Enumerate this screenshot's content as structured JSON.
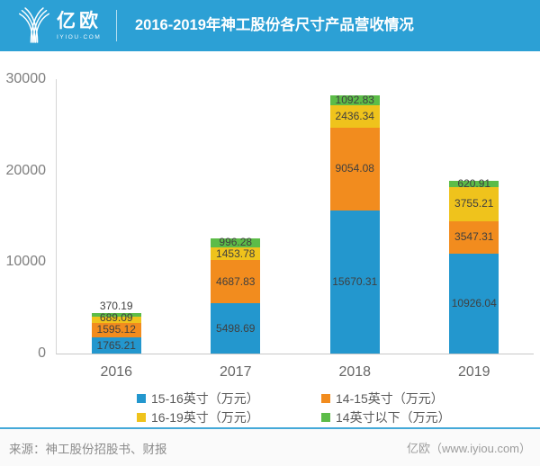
{
  "header": {
    "logo_text": "亿欧",
    "logo_subtext": "IYIOU·COM",
    "title": "2016-2019年神工股份各尺寸产品营收情况",
    "bg_color": "#2CA0D5"
  },
  "chart_data": {
    "type": "bar",
    "stacked": true,
    "title": "2016-2019年神工股份各尺寸产品营收情况",
    "categories": [
      "2016",
      "2017",
      "2018",
      "2019"
    ],
    "series": [
      {
        "name": "15-16英寸（万元）",
        "color": "#2397CE",
        "values": [
          1765.21,
          5498.69,
          15670.31,
          10926.04
        ]
      },
      {
        "name": "14-15英寸（万元）",
        "color": "#F28C1E",
        "values": [
          1595.12,
          4687.83,
          9054.08,
          3547.31
        ]
      },
      {
        "name": "16-19英寸（万元）",
        "color": "#EFC31C",
        "values": [
          689.09,
          1453.78,
          2436.34,
          3755.21
        ]
      },
      {
        "name": "14英寸以下（万元）",
        "color": "#5CBC48",
        "values": [
          370.19,
          996.28,
          1092.83,
          620.91
        ]
      }
    ],
    "xlabel": "",
    "ylabel": "",
    "ylim": [
      0,
      30000
    ],
    "yticks": [
      0,
      10000,
      20000,
      30000
    ],
    "grid": false,
    "legend_position": "bottom",
    "value_labels": true
  },
  "footer": {
    "source": "来源：神工股份招股书、财报",
    "brand": "亿欧（www.iyiou.com）",
    "divider_color": "#44A9D8"
  }
}
